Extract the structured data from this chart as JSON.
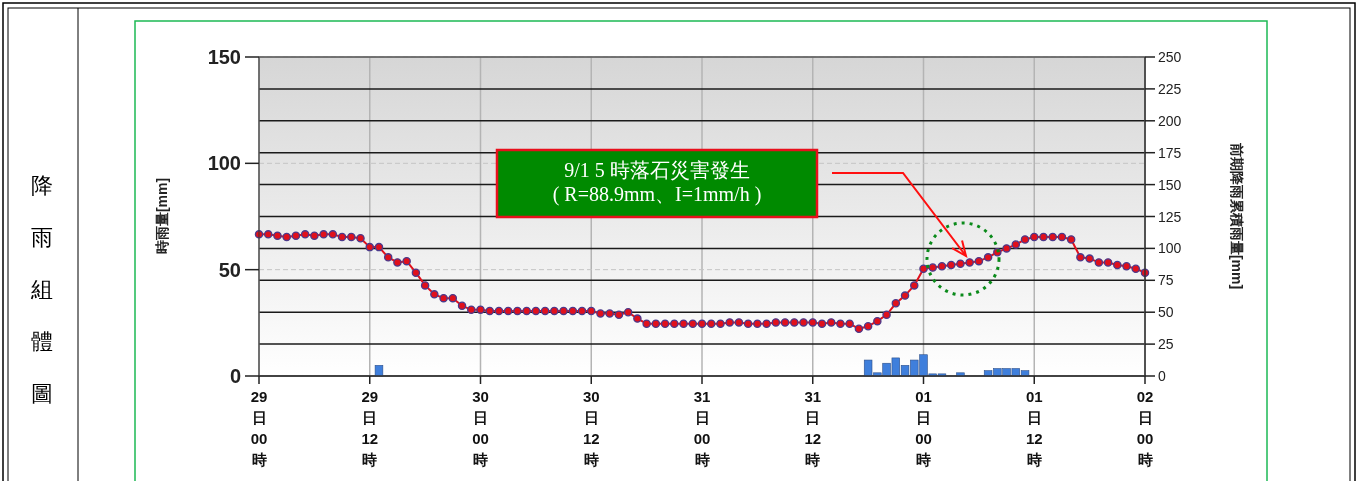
{
  "chart_data": {
    "type": "bar",
    "ylabel": "時雨量[mm]",
    "y2label": "前期降雨累積雨量[mm]",
    "annotations": [
      "降雨組體圖",
      "9/1 5 時落石災害發生\n( R=88.9mm、I=1mm/h )"
    ],
    "categories": [
      "29日00時",
      null,
      null,
      null,
      null,
      null,
      null,
      null,
      null,
      null,
      null,
      null,
      "29日12時",
      null,
      null,
      null,
      null,
      null,
      null,
      null,
      null,
      null,
      null,
      null,
      "30日00時",
      null,
      null,
      null,
      null,
      null,
      null,
      null,
      null,
      null,
      null,
      null,
      "30日12時",
      null,
      null,
      null,
      null,
      null,
      null,
      null,
      null,
      null,
      null,
      null,
      "31日00時",
      null,
      null,
      null,
      null,
      null,
      null,
      null,
      null,
      null,
      null,
      null,
      "31日12時",
      null,
      null,
      null,
      null,
      null,
      null,
      null,
      null,
      null,
      null,
      null,
      "01日00時",
      null,
      null,
      null,
      null,
      null,
      null,
      null,
      null,
      null,
      null,
      null,
      "01日12時",
      null,
      null,
      null,
      null,
      null,
      null,
      null,
      null,
      null,
      null,
      null,
      "02日00時"
    ],
    "series": [
      {
        "color": "#3f7fdc",
        "values": [
          0,
          0,
          0,
          0,
          0,
          0,
          0,
          0,
          0,
          0,
          0,
          0,
          0,
          5,
          0,
          0,
          0,
          0,
          0,
          0,
          0,
          0,
          0,
          0,
          0,
          0,
          0,
          0,
          0,
          0,
          0,
          0,
          0,
          0,
          0,
          0,
          0,
          0,
          0,
          0,
          0,
          0,
          0,
          0,
          0,
          0,
          0,
          0,
          0,
          0,
          0,
          0,
          0,
          0,
          0,
          0,
          0,
          0,
          0,
          0,
          0,
          0,
          0,
          0,
          0,
          0,
          7.5,
          1.5,
          6,
          8.5,
          5,
          7.5,
          10,
          1,
          1,
          0,
          1.5,
          0,
          0,
          2.5,
          3.5,
          3.5,
          3.5,
          2.5,
          0,
          0,
          0,
          0,
          0,
          0,
          0,
          0,
          0,
          0,
          0,
          0,
          0
        ]
      },
      {
        "type": "line",
        "axis": "y2",
        "color": "#e0101c",
        "values": [
          111,
          111,
          110,
          109,
          110,
          111,
          110,
          111,
          111,
          109,
          109,
          108,
          101,
          101,
          93,
          89,
          90,
          81,
          71,
          64,
          61,
          61,
          55,
          52,
          52,
          51,
          51,
          51,
          51,
          51,
          51,
          51,
          51,
          51,
          51,
          51,
          51,
          49,
          49,
          48,
          50,
          45,
          41,
          41,
          41,
          41,
          41,
          41,
          41,
          41,
          41,
          42,
          42,
          41,
          41,
          41,
          42,
          42,
          42,
          42,
          42,
          41,
          42,
          41,
          41,
          37,
          39,
          43,
          48,
          57,
          63,
          71,
          84,
          85,
          86,
          87,
          88,
          89,
          90,
          93,
          97,
          100,
          103,
          107,
          109,
          109,
          109,
          109,
          107,
          93,
          92,
          89,
          89,
          87,
          86,
          84,
          81
        ]
      }
    ],
    "ylim": [
      0,
      150
    ],
    "yticks": [
      0,
      50,
      100,
      150
    ],
    "y2lim": [
      0,
      250
    ],
    "y2ticks": [
      0,
      25,
      50,
      75,
      100,
      125,
      150,
      175,
      200,
      225,
      250
    ],
    "grid": true,
    "marker": "circle",
    "line_style": "solid"
  }
}
